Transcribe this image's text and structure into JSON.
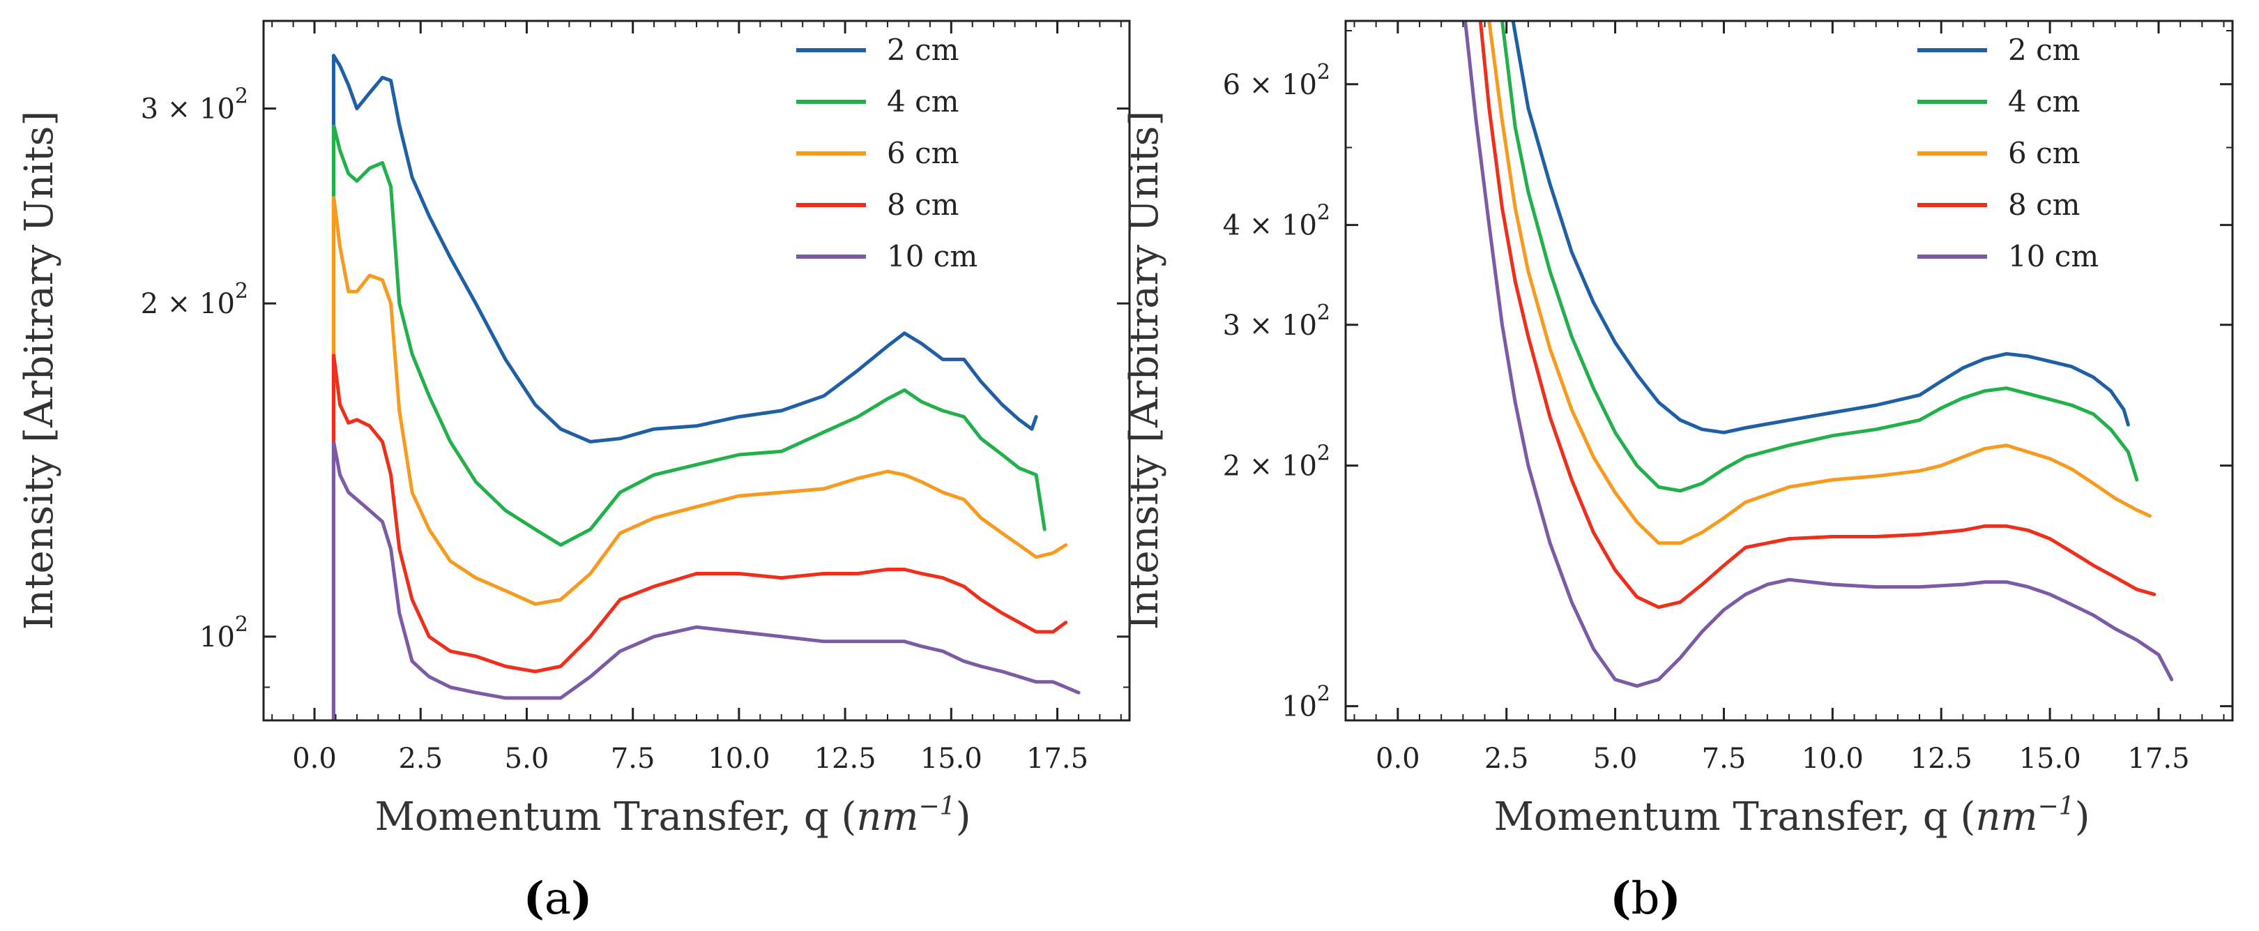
{
  "figure": {
    "panels": [
      {
        "label_open": "(",
        "label_letter": "a",
        "label_close": ")"
      },
      {
        "label_open": "(",
        "label_letter": "b",
        "label_close": ")"
      }
    ]
  },
  "colors": {
    "2 cm": "#1f5fa6",
    "4 cm": "#22b04b",
    "6 cm": "#f79a1e",
    "8 cm": "#ef2f1c",
    "10 cm": "#7b5aa6"
  },
  "chart_data": [
    {
      "type": "line",
      "panel": "a",
      "xlabel_main": "Momentum Transfer, q (",
      "xlabel_unit": "nm",
      "xlabel_exp": "−1",
      "xlabel_close": ")",
      "ylabel": "Intensity [Arbitrary Units]",
      "xscale": "linear",
      "yscale": "log",
      "xlim": [
        -1.2,
        19.2
      ],
      "ylim": [
        84,
        360
      ],
      "xticks": [
        0.0,
        2.5,
        5.0,
        7.5,
        10.0,
        12.5,
        15.0,
        17.5
      ],
      "xtick_labels": [
        "0.0",
        "2.5",
        "5.0",
        "7.5",
        "10.0",
        "12.5",
        "15.0",
        "17.5"
      ],
      "yticks": [
        {
          "value": 300,
          "coef": "3 × 10",
          "exp": "2"
        },
        {
          "value": 200,
          "coef": "2 × 10",
          "exp": "2"
        },
        {
          "value": 100,
          "coef": "10",
          "exp": "2"
        }
      ],
      "legend_position": "top-right",
      "series": [
        {
          "name": "2 cm",
          "x": [
            0.45,
            0.6,
            0.8,
            1.0,
            1.3,
            1.6,
            1.8,
            2.0,
            2.3,
            2.7,
            3.2,
            3.8,
            4.5,
            5.2,
            5.8,
            6.5,
            7.2,
            8.0,
            9.0,
            10.0,
            11.0,
            12.0,
            12.8,
            13.5,
            13.9,
            14.3,
            14.8,
            15.3,
            15.7,
            16.2,
            16.6,
            16.9,
            17.0
          ],
          "y": [
            335,
            328,
            315,
            300,
            310,
            320,
            318,
            290,
            260,
            240,
            220,
            200,
            178,
            162,
            154,
            150,
            151,
            154,
            155,
            158,
            160,
            165,
            174,
            183,
            188,
            184,
            178,
            178,
            170,
            162,
            157,
            154,
            158
          ]
        },
        {
          "name": "4 cm",
          "x": [
            0.45,
            0.6,
            0.8,
            1.0,
            1.3,
            1.6,
            1.8,
            2.0,
            2.3,
            2.7,
            3.2,
            3.8,
            4.5,
            5.2,
            5.8,
            6.5,
            7.2,
            8.0,
            9.0,
            10.0,
            11.0,
            12.0,
            12.8,
            13.5,
            13.9,
            14.3,
            14.8,
            15.3,
            15.7,
            16.2,
            16.6,
            17.0,
            17.2
          ],
          "y": [
            290,
            275,
            262,
            258,
            265,
            268,
            255,
            200,
            180,
            165,
            150,
            138,
            130,
            125,
            121,
            125,
            135,
            140,
            143,
            146,
            147,
            153,
            158,
            164,
            167,
            163,
            160,
            158,
            151,
            146,
            142,
            140,
            125
          ]
        },
        {
          "name": "6 cm",
          "x": [
            0.45,
            0.6,
            0.8,
            1.0,
            1.3,
            1.6,
            1.8,
            2.0,
            2.3,
            2.7,
            3.2,
            3.8,
            4.5,
            5.2,
            5.8,
            6.5,
            7.2,
            8.0,
            9.0,
            10.0,
            11.0,
            12.0,
            12.8,
            13.5,
            13.9,
            14.3,
            14.8,
            15.3,
            15.7,
            16.2,
            16.6,
            17.0,
            17.4,
            17.7
          ],
          "y": [
            250,
            225,
            205,
            205,
            212,
            210,
            200,
            160,
            135,
            125,
            117,
            113,
            110,
            107,
            108,
            114,
            124,
            128,
            131,
            134,
            135,
            136,
            139,
            141,
            140,
            138,
            135,
            133,
            128,
            124,
            121,
            118,
            119,
            121
          ]
        },
        {
          "name": "8 cm",
          "x": [
            0.45,
            0.6,
            0.8,
            1.0,
            1.3,
            1.6,
            1.8,
            2.0,
            2.3,
            2.7,
            3.2,
            3.8,
            4.5,
            5.2,
            5.8,
            6.5,
            7.2,
            8.0,
            9.0,
            10.0,
            11.0,
            12.0,
            12.8,
            13.5,
            13.9,
            14.3,
            14.8,
            15.3,
            15.7,
            16.2,
            16.6,
            17.0,
            17.4,
            17.7
          ],
          "y": [
            180,
            162,
            156,
            157,
            155,
            150,
            140,
            120,
            108,
            100,
            97,
            96,
            94,
            93,
            94,
            100,
            108,
            111,
            114,
            114,
            113,
            114,
            114,
            115,
            115,
            114,
            113,
            111,
            108,
            105,
            103,
            101,
            101,
            103
          ]
        },
        {
          "name": "10 cm",
          "x": [
            0.45,
            0.6,
            0.8,
            1.0,
            1.3,
            1.6,
            1.8,
            2.0,
            2.3,
            2.7,
            3.2,
            3.8,
            4.5,
            5.2,
            5.8,
            6.5,
            7.2,
            8.0,
            9.0,
            10.0,
            11.0,
            12.0,
            12.8,
            13.5,
            13.9,
            14.3,
            14.8,
            15.3,
            15.7,
            16.2,
            16.6,
            17.0,
            17.4,
            17.7,
            18.0
          ],
          "y": [
            150,
            140,
            135,
            133,
            130,
            127,
            120,
            105,
            95,
            92,
            90,
            89,
            88,
            88,
            88,
            92,
            97,
            100,
            102,
            101,
            100,
            99,
            99,
            99,
            99,
            98,
            97,
            95,
            94,
            93,
            92,
            91,
            91,
            90,
            89
          ]
        }
      ]
    },
    {
      "type": "line",
      "panel": "b",
      "xlabel_main": "Momentum Transfer, q (",
      "xlabel_unit": "nm",
      "xlabel_exp": "−1",
      "xlabel_close": ")",
      "ylabel": "Intensity [Arbitrary Units]",
      "xscale": "linear",
      "yscale": "log",
      "xlim": [
        -1.2,
        19.2
      ],
      "ylim": [
        96,
        720
      ],
      "xticks": [
        0.0,
        2.5,
        5.0,
        7.5,
        10.0,
        12.5,
        15.0,
        17.5
      ],
      "xtick_labels": [
        "0.0",
        "2.5",
        "5.0",
        "7.5",
        "10.0",
        "12.5",
        "15.0",
        "17.5"
      ],
      "yticks": [
        {
          "value": 600,
          "coef": "6 × 10",
          "exp": "2"
        },
        {
          "value": 400,
          "coef": "4 × 10",
          "exp": "2"
        },
        {
          "value": 300,
          "coef": "3 × 10",
          "exp": "2"
        },
        {
          "value": 200,
          "coef": "2 × 10",
          "exp": "2"
        },
        {
          "value": 100,
          "coef": "10",
          "exp": "2"
        }
      ],
      "legend_position": "top-right",
      "series": [
        {
          "name": "2 cm",
          "x": [
            2.65,
            3.0,
            3.5,
            4.0,
            4.5,
            5.0,
            5.5,
            6.0,
            6.5,
            7.0,
            7.5,
            8.0,
            9.0,
            10.0,
            11.0,
            12.0,
            12.5,
            13.0,
            13.5,
            14.0,
            14.5,
            15.0,
            15.5,
            16.0,
            16.4,
            16.7,
            16.8
          ],
          "y": [
            720,
            560,
            450,
            370,
            320,
            285,
            260,
            240,
            228,
            222,
            220,
            223,
            228,
            233,
            238,
            245,
            255,
            265,
            272,
            276,
            274,
            270,
            266,
            258,
            248,
            235,
            225
          ]
        },
        {
          "name": "4 cm",
          "x": [
            2.4,
            2.7,
            3.0,
            3.5,
            4.0,
            4.5,
            5.0,
            5.5,
            6.0,
            6.5,
            7.0,
            7.5,
            8.0,
            9.0,
            10.0,
            11.0,
            12.0,
            12.5,
            13.0,
            13.5,
            14.0,
            14.5,
            15.0,
            15.5,
            16.0,
            16.4,
            16.8,
            17.0
          ],
          "y": [
            720,
            530,
            440,
            350,
            290,
            250,
            220,
            200,
            188,
            186,
            190,
            198,
            205,
            212,
            218,
            222,
            228,
            236,
            243,
            248,
            250,
            246,
            242,
            238,
            232,
            222,
            208,
            192
          ]
        },
        {
          "name": "6 cm",
          "x": [
            2.1,
            2.4,
            2.7,
            3.0,
            3.5,
            4.0,
            4.5,
            5.0,
            5.5,
            6.0,
            6.5,
            7.0,
            7.5,
            8.0,
            9.0,
            10.0,
            11.0,
            12.0,
            12.5,
            13.0,
            13.5,
            14.0,
            14.5,
            15.0,
            15.5,
            16.0,
            16.5,
            17.0,
            17.3
          ],
          "y": [
            720,
            540,
            420,
            350,
            280,
            235,
            205,
            185,
            170,
            160,
            160,
            165,
            172,
            180,
            188,
            192,
            194,
            197,
            200,
            205,
            210,
            212,
            208,
            204,
            198,
            190,
            182,
            176,
            173
          ]
        },
        {
          "name": "8 cm",
          "x": [
            1.9,
            2.1,
            2.4,
            2.7,
            3.0,
            3.5,
            4.0,
            4.5,
            5.0,
            5.5,
            6.0,
            6.5,
            7.0,
            7.5,
            8.0,
            9.0,
            10.0,
            11.0,
            12.0,
            12.5,
            13.0,
            13.5,
            14.0,
            14.5,
            15.0,
            15.5,
            16.0,
            16.5,
            17.0,
            17.4
          ],
          "y": [
            720,
            560,
            420,
            340,
            290,
            230,
            192,
            165,
            148,
            137,
            133,
            135,
            142,
            150,
            158,
            162,
            163,
            163,
            164,
            165,
            166,
            168,
            168,
            166,
            162,
            156,
            150,
            145,
            140,
            138
          ]
        },
        {
          "name": "10 cm",
          "x": [
            1.55,
            1.8,
            2.1,
            2.4,
            2.7,
            3.0,
            3.5,
            4.0,
            4.5,
            5.0,
            5.5,
            6.0,
            6.5,
            7.0,
            7.5,
            8.0,
            8.5,
            9.0,
            10.0,
            11.0,
            12.0,
            13.0,
            13.5,
            14.0,
            14.5,
            15.0,
            15.5,
            16.0,
            16.5,
            17.0,
            17.5,
            17.8
          ],
          "y": [
            720,
            540,
            400,
            300,
            240,
            200,
            160,
            135,
            118,
            108,
            106,
            108,
            115,
            124,
            132,
            138,
            142,
            144,
            142,
            141,
            141,
            142,
            143,
            143,
            141,
            138,
            134,
            130,
            125,
            121,
            116,
            108
          ]
        }
      ]
    }
  ]
}
